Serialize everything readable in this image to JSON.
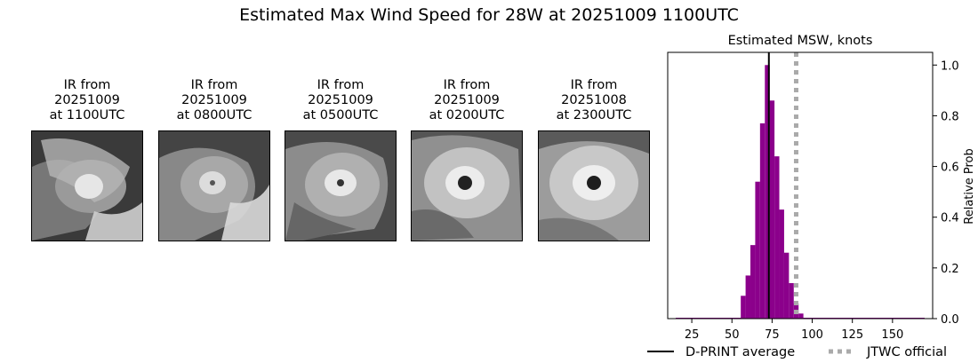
{
  "figure_title": "Estimated Max Wind Speed for 28W at 20251009 1100UTC",
  "ir_panels": [
    {
      "label": "IR from\n20251009\nat 1100UTC"
    },
    {
      "label": "IR from\n20251009\nat 0800UTC"
    },
    {
      "label": "IR from\n20251009\nat 0500UTC"
    },
    {
      "label": "IR from\n20251009\nat 0200UTC"
    },
    {
      "label": "IR from\n20251008\nat 2300UTC"
    }
  ],
  "colors": {
    "bars": "#8b008b",
    "dprint": "#000000",
    "jtwc": "#aaaaaa"
  },
  "chart_data": {
    "type": "bar",
    "title": "Estimated MSW, knots",
    "xlabel": "",
    "ylabel": "Relative Prob",
    "xlim": [
      10,
      175
    ],
    "ylim": [
      0,
      1.05
    ],
    "x_ticks": [
      25,
      50,
      75,
      100,
      125,
      150
    ],
    "y_ticks": [
      0.0,
      0.2,
      0.4,
      0.6,
      0.8,
      1.0
    ],
    "y_tick_labels": [
      "0.0",
      "0.2",
      "0.4",
      "0.6",
      "0.8",
      "1.0"
    ],
    "bin_width": 3,
    "bins": [
      {
        "x": 57,
        "value": 0.09
      },
      {
        "x": 60,
        "value": 0.17
      },
      {
        "x": 63,
        "value": 0.29
      },
      {
        "x": 66,
        "value": 0.54
      },
      {
        "x": 69,
        "value": 0.77
      },
      {
        "x": 72,
        "value": 1.0
      },
      {
        "x": 75,
        "value": 0.86
      },
      {
        "x": 78,
        "value": 0.64
      },
      {
        "x": 81,
        "value": 0.43
      },
      {
        "x": 84,
        "value": 0.26
      },
      {
        "x": 87,
        "value": 0.14
      },
      {
        "x": 90,
        "value": 0.06
      },
      {
        "x": 93,
        "value": 0.02
      }
    ],
    "dprint_average": 73,
    "jtwc_official": 90,
    "legend": [
      {
        "label": "D-PRINT average",
        "style": "solid"
      },
      {
        "label": "JTWC official",
        "style": "dotted"
      }
    ]
  }
}
